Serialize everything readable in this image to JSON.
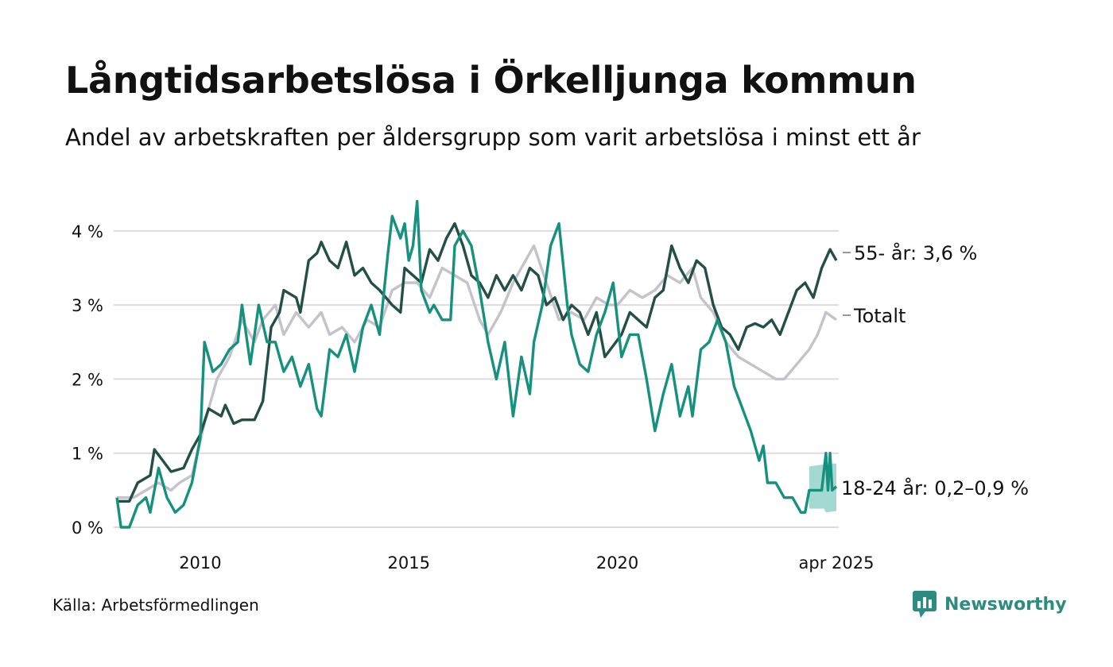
{
  "header": {
    "title": "Långtidsarbetslösa i Örkelljunga kommun",
    "subtitle": "Andel av arbetskraften per åldersgrupp som varit arbetslösa i minst ett år"
  },
  "footer": {
    "source": "Källa: Arbetsförmedlingen",
    "brand": "Newsworthy",
    "brand_color": "#2e8b80"
  },
  "chart_data": {
    "type": "line",
    "title": "Långtidsarbetslösa i Örkelljunga kommun",
    "subtitle": "Andel av arbetskraften per åldersgrupp som varit arbetslösa i minst ett år",
    "xlabel": "",
    "ylabel": "",
    "x_ticks": [
      {
        "value": 2010,
        "label": "2010"
      },
      {
        "value": 2015,
        "label": "2015"
      },
      {
        "value": 2020,
        "label": "2020"
      },
      {
        "value": 2025.25,
        "label": "apr 2025"
      }
    ],
    "y_ticks": [
      {
        "value": 0,
        "label": "0 %"
      },
      {
        "value": 1,
        "label": "1 %"
      },
      {
        "value": 2,
        "label": "2 %"
      },
      {
        "value": 3,
        "label": "3 %"
      },
      {
        "value": 4,
        "label": "4 %"
      }
    ],
    "xlim": [
      2008.0,
      2025.25
    ],
    "ylim": [
      0,
      4.5
    ],
    "grid": true,
    "legend": "end-of-line labels on the right",
    "series": [
      {
        "name": "Totalt",
        "end_label": "Totalt",
        "color": "#c4c2cc",
        "points": [
          [
            2008.0,
            0.4
          ],
          [
            2008.4,
            0.4
          ],
          [
            2008.7,
            0.5
          ],
          [
            2009.0,
            0.6
          ],
          [
            2009.3,
            0.5
          ],
          [
            2009.5,
            0.6
          ],
          [
            2009.8,
            0.7
          ],
          [
            2010.1,
            1.4
          ],
          [
            2010.4,
            2.0
          ],
          [
            2010.7,
            2.3
          ],
          [
            2011.0,
            2.8
          ],
          [
            2011.3,
            2.5
          ],
          [
            2011.5,
            2.8
          ],
          [
            2011.8,
            3.0
          ],
          [
            2012.0,
            2.6
          ],
          [
            2012.3,
            2.9
          ],
          [
            2012.6,
            2.7
          ],
          [
            2012.9,
            2.9
          ],
          [
            2013.1,
            2.6
          ],
          [
            2013.4,
            2.7
          ],
          [
            2013.7,
            2.5
          ],
          [
            2014.0,
            2.8
          ],
          [
            2014.3,
            2.7
          ],
          [
            2014.6,
            3.2
          ],
          [
            2014.9,
            3.3
          ],
          [
            2015.2,
            3.3
          ],
          [
            2015.5,
            3.1
          ],
          [
            2015.8,
            3.5
          ],
          [
            2016.1,
            3.4
          ],
          [
            2016.4,
            3.3
          ],
          [
            2016.7,
            2.8
          ],
          [
            2016.9,
            2.6
          ],
          [
            2017.2,
            2.9
          ],
          [
            2017.5,
            3.3
          ],
          [
            2017.8,
            3.6
          ],
          [
            2018.0,
            3.8
          ],
          [
            2018.3,
            3.3
          ],
          [
            2018.6,
            2.8
          ],
          [
            2018.9,
            2.9
          ],
          [
            2019.2,
            2.8
          ],
          [
            2019.5,
            3.1
          ],
          [
            2019.8,
            3.0
          ],
          [
            2020.0,
            3.0
          ],
          [
            2020.3,
            3.2
          ],
          [
            2020.6,
            3.1
          ],
          [
            2020.9,
            3.2
          ],
          [
            2021.2,
            3.4
          ],
          [
            2021.5,
            3.3
          ],
          [
            2021.8,
            3.5
          ],
          [
            2022.0,
            3.1
          ],
          [
            2022.3,
            2.9
          ],
          [
            2022.6,
            2.5
          ],
          [
            2022.9,
            2.3
          ],
          [
            2023.2,
            2.2
          ],
          [
            2023.5,
            2.1
          ],
          [
            2023.8,
            2.0
          ],
          [
            2024.0,
            2.0
          ],
          [
            2024.3,
            2.2
          ],
          [
            2024.6,
            2.4
          ],
          [
            2024.8,
            2.6
          ],
          [
            2025.0,
            2.9
          ],
          [
            2025.25,
            2.8
          ]
        ]
      },
      {
        "name": "55- år",
        "end_label": "55- år: 3,6 %",
        "color": "#234f47",
        "points": [
          [
            2008.0,
            0.35
          ],
          [
            2008.3,
            0.35
          ],
          [
            2008.5,
            0.6
          ],
          [
            2008.8,
            0.7
          ],
          [
            2008.9,
            1.05
          ],
          [
            2009.1,
            0.9
          ],
          [
            2009.3,
            0.75
          ],
          [
            2009.6,
            0.8
          ],
          [
            2009.8,
            1.05
          ],
          [
            2010.0,
            1.25
          ],
          [
            2010.2,
            1.6
          ],
          [
            2010.5,
            1.5
          ],
          [
            2010.6,
            1.65
          ],
          [
            2010.8,
            1.4
          ],
          [
            2011.0,
            1.45
          ],
          [
            2011.3,
            1.45
          ],
          [
            2011.5,
            1.7
          ],
          [
            2011.7,
            2.7
          ],
          [
            2011.9,
            2.9
          ],
          [
            2012.0,
            3.2
          ],
          [
            2012.3,
            3.1
          ],
          [
            2012.4,
            2.9
          ],
          [
            2012.6,
            3.6
          ],
          [
            2012.8,
            3.7
          ],
          [
            2012.9,
            3.85
          ],
          [
            2013.1,
            3.6
          ],
          [
            2013.3,
            3.5
          ],
          [
            2013.5,
            3.85
          ],
          [
            2013.7,
            3.4
          ],
          [
            2013.9,
            3.5
          ],
          [
            2014.1,
            3.3
          ],
          [
            2014.3,
            3.2
          ],
          [
            2014.6,
            3.0
          ],
          [
            2014.8,
            2.9
          ],
          [
            2014.9,
            3.5
          ],
          [
            2015.1,
            3.4
          ],
          [
            2015.3,
            3.3
          ],
          [
            2015.5,
            3.75
          ],
          [
            2015.7,
            3.6
          ],
          [
            2015.9,
            3.9
          ],
          [
            2016.1,
            4.1
          ],
          [
            2016.3,
            3.8
          ],
          [
            2016.5,
            3.4
          ],
          [
            2016.7,
            3.3
          ],
          [
            2016.9,
            3.1
          ],
          [
            2017.1,
            3.4
          ],
          [
            2017.3,
            3.2
          ],
          [
            2017.5,
            3.4
          ],
          [
            2017.7,
            3.2
          ],
          [
            2017.9,
            3.5
          ],
          [
            2018.1,
            3.4
          ],
          [
            2018.3,
            3.0
          ],
          [
            2018.5,
            3.1
          ],
          [
            2018.7,
            2.8
          ],
          [
            2018.9,
            3.0
          ],
          [
            2019.1,
            2.9
          ],
          [
            2019.3,
            2.6
          ],
          [
            2019.5,
            2.9
          ],
          [
            2019.7,
            2.3
          ],
          [
            2019.9,
            2.45
          ],
          [
            2020.1,
            2.6
          ],
          [
            2020.3,
            2.9
          ],
          [
            2020.5,
            2.8
          ],
          [
            2020.7,
            2.7
          ],
          [
            2020.9,
            3.1
          ],
          [
            2021.1,
            3.2
          ],
          [
            2021.3,
            3.8
          ],
          [
            2021.5,
            3.5
          ],
          [
            2021.7,
            3.3
          ],
          [
            2021.9,
            3.6
          ],
          [
            2022.1,
            3.5
          ],
          [
            2022.3,
            3.0
          ],
          [
            2022.5,
            2.7
          ],
          [
            2022.7,
            2.6
          ],
          [
            2022.9,
            2.4
          ],
          [
            2023.1,
            2.7
          ],
          [
            2023.3,
            2.75
          ],
          [
            2023.5,
            2.7
          ],
          [
            2023.7,
            2.8
          ],
          [
            2023.9,
            2.6
          ],
          [
            2024.1,
            2.9
          ],
          [
            2024.3,
            3.2
          ],
          [
            2024.5,
            3.3
          ],
          [
            2024.7,
            3.1
          ],
          [
            2024.9,
            3.5
          ],
          [
            2025.1,
            3.75
          ],
          [
            2025.25,
            3.6
          ]
        ]
      },
      {
        "name": "18-24 år",
        "end_label": "18-24 år: 0,2–0,9 %",
        "color": "#17917f",
        "points": [
          [
            2008.0,
            0.4
          ],
          [
            2008.1,
            0.0
          ],
          [
            2008.3,
            0.0
          ],
          [
            2008.5,
            0.3
          ],
          [
            2008.7,
            0.4
          ],
          [
            2008.8,
            0.2
          ],
          [
            2009.0,
            0.8
          ],
          [
            2009.2,
            0.4
          ],
          [
            2009.4,
            0.2
          ],
          [
            2009.6,
            0.3
          ],
          [
            2009.8,
            0.6
          ],
          [
            2010.0,
            1.2
          ],
          [
            2010.1,
            2.5
          ],
          [
            2010.3,
            2.1
          ],
          [
            2010.5,
            2.2
          ],
          [
            2010.7,
            2.4
          ],
          [
            2010.9,
            2.5
          ],
          [
            2011.0,
            3.0
          ],
          [
            2011.2,
            2.2
          ],
          [
            2011.4,
            3.0
          ],
          [
            2011.6,
            2.5
          ],
          [
            2011.8,
            2.5
          ],
          [
            2012.0,
            2.1
          ],
          [
            2012.2,
            2.3
          ],
          [
            2012.4,
            1.9
          ],
          [
            2012.6,
            2.2
          ],
          [
            2012.8,
            1.6
          ],
          [
            2012.9,
            1.5
          ],
          [
            2013.1,
            2.4
          ],
          [
            2013.3,
            2.3
          ],
          [
            2013.5,
            2.6
          ],
          [
            2013.7,
            2.1
          ],
          [
            2013.9,
            2.7
          ],
          [
            2014.1,
            3.0
          ],
          [
            2014.3,
            2.6
          ],
          [
            2014.5,
            3.7
          ],
          [
            2014.6,
            4.2
          ],
          [
            2014.8,
            3.9
          ],
          [
            2014.9,
            4.1
          ],
          [
            2015.0,
            3.6
          ],
          [
            2015.1,
            3.8
          ],
          [
            2015.2,
            4.4
          ],
          [
            2015.3,
            3.2
          ],
          [
            2015.5,
            2.9
          ],
          [
            2015.6,
            3.0
          ],
          [
            2015.8,
            2.8
          ],
          [
            2016.0,
            2.8
          ],
          [
            2016.1,
            3.8
          ],
          [
            2016.3,
            4.0
          ],
          [
            2016.5,
            3.8
          ],
          [
            2016.7,
            3.2
          ],
          [
            2016.9,
            2.5
          ],
          [
            2017.1,
            2.0
          ],
          [
            2017.3,
            2.5
          ],
          [
            2017.5,
            1.5
          ],
          [
            2017.7,
            2.3
          ],
          [
            2017.9,
            1.8
          ],
          [
            2018.0,
            2.5
          ],
          [
            2018.2,
            3.0
          ],
          [
            2018.4,
            3.8
          ],
          [
            2018.6,
            4.1
          ],
          [
            2018.8,
            3.0
          ],
          [
            2018.9,
            2.6
          ],
          [
            2019.1,
            2.2
          ],
          [
            2019.3,
            2.1
          ],
          [
            2019.5,
            2.6
          ],
          [
            2019.7,
            2.9
          ],
          [
            2019.9,
            3.3
          ],
          [
            2020.1,
            2.3
          ],
          [
            2020.3,
            2.6
          ],
          [
            2020.5,
            2.6
          ],
          [
            2020.7,
            2.0
          ],
          [
            2020.9,
            1.3
          ],
          [
            2021.1,
            1.8
          ],
          [
            2021.3,
            2.2
          ],
          [
            2021.5,
            1.5
          ],
          [
            2021.7,
            1.9
          ],
          [
            2021.8,
            1.5
          ],
          [
            2022.0,
            2.4
          ],
          [
            2022.2,
            2.5
          ],
          [
            2022.4,
            2.8
          ],
          [
            2022.6,
            2.5
          ],
          [
            2022.8,
            1.9
          ],
          [
            2023.0,
            1.6
          ],
          [
            2023.2,
            1.3
          ],
          [
            2023.4,
            0.9
          ],
          [
            2023.5,
            1.1
          ],
          [
            2023.6,
            0.6
          ],
          [
            2023.8,
            0.6
          ],
          [
            2024.0,
            0.4
          ],
          [
            2024.2,
            0.4
          ],
          [
            2024.4,
            0.2
          ],
          [
            2024.5,
            0.2
          ],
          [
            2024.6,
            0.5
          ],
          [
            2024.9,
            0.5
          ],
          [
            2025.0,
            1.0
          ],
          [
            2025.05,
            0.5
          ],
          [
            2025.1,
            1.0
          ],
          [
            2025.15,
            0.5
          ],
          [
            2025.25,
            0.55
          ]
        ],
        "range": {
          "color": "#9ad5cc",
          "points": [
            [
              2024.6,
              0.25,
              0.82
            ],
            [
              2024.95,
              0.25,
              0.85
            ],
            [
              2025.0,
              0.2,
              0.86
            ],
            [
              2025.25,
              0.22,
              0.86
            ]
          ]
        }
      }
    ]
  }
}
